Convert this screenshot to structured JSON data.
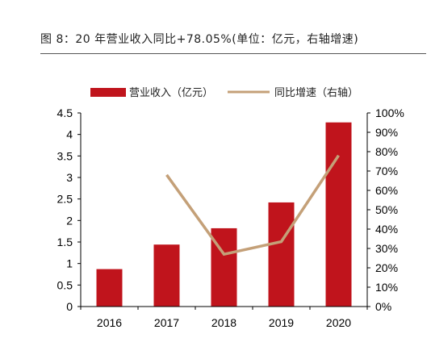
{
  "figure_title": "图 8：20 年营业收入同比+78.05%(单位：亿元，右轴增速)",
  "chart_data": {
    "type": "bar",
    "categories": [
      "2016",
      "2017",
      "2018",
      "2019",
      "2020"
    ],
    "series": [
      {
        "name": "营业收入（亿元）",
        "type": "bar",
        "axis": "left",
        "color": "#C0141C",
        "values": [
          0.87,
          1.44,
          1.82,
          2.42,
          4.28
        ]
      },
      {
        "name": "同比增速（右轴）",
        "type": "line",
        "axis": "right",
        "color": "#C4A078",
        "values": [
          null,
          0.68,
          0.27,
          0.335,
          0.7805
        ]
      }
    ],
    "y_left": {
      "lim": [
        0,
        4.5
      ],
      "ticks": [
        "0",
        "0.5",
        "1",
        "1.5",
        "2",
        "2.5",
        "3",
        "3.5",
        "4",
        "4.5"
      ]
    },
    "y_right": {
      "lim": [
        0,
        1.0
      ],
      "ticks": [
        "0%",
        "10%",
        "20%",
        "30%",
        "40%",
        "50%",
        "60%",
        "70%",
        "80%",
        "90%",
        "100%"
      ]
    },
    "legend_position": "top",
    "grid": false
  }
}
